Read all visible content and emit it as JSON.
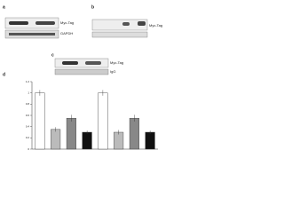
{
  "panels": {
    "a": "a",
    "b": "b",
    "c": "c",
    "d": "d"
  },
  "blots": {
    "a_top": "Myc-Tag",
    "a_bottom": "GAPDH",
    "b_top": "Myc-Tag",
    "c_top": "Myc-Tag",
    "c_bottom": "IgG"
  },
  "chart_data": {
    "type": "bar",
    "categories": [
      null,
      null,
      null,
      null,
      null,
      null,
      null,
      null
    ],
    "values": [
      1.0,
      0.35,
      0.55,
      0.3,
      1.0,
      0.3,
      0.55,
      0.3
    ],
    "errors": [
      0.05,
      0.04,
      0.06,
      0.03,
      0.05,
      0.04,
      0.06,
      0.03
    ],
    "colors": [
      "#ffffff",
      "#bbbbbb",
      "#888888",
      "#111111",
      "#ffffff",
      "#bbbbbb",
      "#888888",
      "#111111"
    ],
    "ylim": [
      0,
      1.2
    ],
    "yticks": [
      0,
      0.2,
      0.4,
      0.6,
      0.8,
      1,
      1.2
    ]
  }
}
